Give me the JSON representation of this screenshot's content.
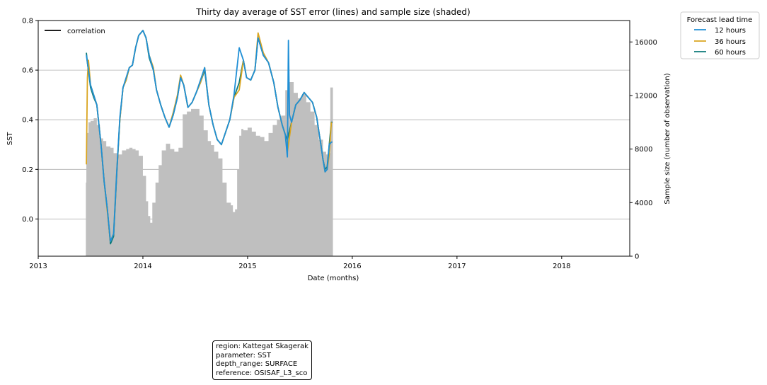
{
  "chart_data": {
    "type": "line",
    "title": "Thirty day average of SST error (lines) and sample size (shaded)",
    "xlabel": "Date (months)",
    "ylabel": "SST",
    "y2label": "Sample size (number of observation)",
    "xlim": [
      2013.0,
      2018.65
    ],
    "ylim": [
      -0.15,
      0.8
    ],
    "y2lim": [
      0,
      17600
    ],
    "xticks": [
      2013,
      2014,
      2015,
      2016,
      2017,
      2018
    ],
    "xtick_labels": [
      "2013",
      "2014",
      "2015",
      "2016",
      "2017",
      "2018"
    ],
    "yticks": [
      0.0,
      0.2,
      0.4,
      0.6,
      0.8
    ],
    "ytick_labels": [
      "0.0",
      "0.2",
      "0.4",
      "0.6",
      "0.8"
    ],
    "y2ticks": [
      0,
      4000,
      8000,
      12000,
      16000
    ],
    "y2tick_labels": [
      "0",
      "4000",
      "8000",
      "12000",
      "16000"
    ],
    "grid": "horizontal",
    "main_legend": {
      "label": "correlation",
      "placement": "upper-left"
    },
    "legend": {
      "title": "Forecast lead time",
      "placement": "outside-top-right",
      "entries": [
        {
          "label": "12 hours",
          "color": "#1f8fd6"
        },
        {
          "label": "36 hours",
          "color": "#daa520"
        },
        {
          "label": "60 hours",
          "color": "#0d7a7a"
        }
      ]
    },
    "series": [
      {
        "name": "60 hours",
        "color": "#0d7a7a",
        "x": [
          2013.46,
          2013.47,
          2013.5,
          2013.53,
          2013.56,
          2013.58,
          2013.6,
          2013.63,
          2013.66,
          2013.69,
          2013.72,
          2013.75,
          2013.78,
          2013.81,
          2013.84,
          2013.87,
          2013.9,
          2013.93,
          2013.96,
          2014.0,
          2014.03,
          2014.06,
          2014.1,
          2014.13,
          2014.17,
          2014.21,
          2014.25,
          2014.29,
          2014.33,
          2014.36,
          2014.39,
          2014.43,
          2014.47,
          2014.51,
          2014.55,
          2014.59,
          2014.63,
          2014.67,
          2014.71,
          2014.75,
          2014.79,
          2014.83,
          2014.87,
          2014.92,
          2014.96,
          2014.99,
          2015.03,
          2015.07,
          2015.1,
          2015.15,
          2015.2,
          2015.25,
          2015.29,
          2015.33,
          2015.36,
          2015.38,
          2015.42,
          2015.46,
          2015.5,
          2015.54,
          2015.58,
          2015.62,
          2015.66,
          2015.7,
          2015.72,
          2015.74,
          2015.76,
          2015.78,
          2015.8,
          2015.81
        ],
        "values": [
          0.67,
          0.63,
          0.53,
          0.49,
          0.46,
          0.38,
          0.3,
          0.15,
          0.04,
          -0.1,
          -0.07,
          0.18,
          0.4,
          0.53,
          0.56,
          0.61,
          0.62,
          0.69,
          0.74,
          0.76,
          0.73,
          0.65,
          0.6,
          0.52,
          0.46,
          0.41,
          0.37,
          0.42,
          0.49,
          0.57,
          0.54,
          0.45,
          0.47,
          0.51,
          0.55,
          0.6,
          0.46,
          0.38,
          0.32,
          0.3,
          0.35,
          0.4,
          0.49,
          0.55,
          0.64,
          0.57,
          0.56,
          0.6,
          0.73,
          0.66,
          0.63,
          0.55,
          0.45,
          0.38,
          0.34,
          0.32,
          0.39,
          0.46,
          0.48,
          0.51,
          0.49,
          0.47,
          0.41,
          0.3,
          0.24,
          0.2,
          0.21,
          0.3,
          0.39,
          0.39
        ]
      },
      {
        "name": "36 hours",
        "color": "#daa520",
        "x": [
          2013.46,
          2013.47,
          2013.48,
          2013.5,
          2013.53,
          2013.56,
          2013.58,
          2013.6,
          2013.63,
          2013.66,
          2013.69,
          2013.72,
          2013.75,
          2013.78,
          2013.81,
          2013.84,
          2013.87,
          2013.9,
          2013.93,
          2013.96,
          2014.0,
          2014.03,
          2014.06,
          2014.1,
          2014.13,
          2014.17,
          2014.21,
          2014.25,
          2014.29,
          2014.33,
          2014.36,
          2014.39,
          2014.43,
          2014.47,
          2014.51,
          2014.55,
          2014.59,
          2014.63,
          2014.67,
          2014.71,
          2014.75,
          2014.79,
          2014.83,
          2014.87,
          2014.92,
          2014.96,
          2014.99,
          2015.03,
          2015.07,
          2015.1,
          2015.15,
          2015.2,
          2015.25,
          2015.29,
          2015.33,
          2015.36,
          2015.38,
          2015.42,
          2015.46,
          2015.5,
          2015.54,
          2015.58,
          2015.62,
          2015.66,
          2015.7,
          2015.72,
          2015.74,
          2015.76,
          2015.78,
          2015.8
        ],
        "values": [
          0.22,
          0.57,
          0.64,
          0.54,
          0.5,
          0.46,
          0.38,
          0.3,
          0.15,
          0.03,
          -0.09,
          -0.06,
          0.19,
          0.4,
          0.53,
          0.56,
          0.61,
          0.62,
          0.69,
          0.74,
          0.76,
          0.73,
          0.66,
          0.61,
          0.52,
          0.46,
          0.41,
          0.37,
          0.43,
          0.5,
          0.58,
          0.54,
          0.45,
          0.47,
          0.51,
          0.55,
          0.61,
          0.46,
          0.38,
          0.32,
          0.3,
          0.35,
          0.4,
          0.49,
          0.52,
          0.64,
          0.57,
          0.56,
          0.6,
          0.75,
          0.67,
          0.63,
          0.55,
          0.45,
          0.38,
          0.34,
          0.27,
          0.39,
          0.46,
          0.48,
          0.51,
          0.49,
          0.47,
          0.41,
          0.3,
          0.24,
          0.19,
          0.2,
          0.26,
          0.39
        ]
      },
      {
        "name": "12 hours",
        "color": "#1f8fd6",
        "x": [
          2013.46,
          2013.47,
          2013.5,
          2013.53,
          2013.56,
          2013.58,
          2013.6,
          2013.63,
          2013.66,
          2013.69,
          2013.72,
          2013.75,
          2013.78,
          2013.81,
          2013.84,
          2013.87,
          2013.9,
          2013.93,
          2013.96,
          2014.0,
          2014.03,
          2014.06,
          2014.1,
          2014.13,
          2014.17,
          2014.21,
          2014.25,
          2014.29,
          2014.33,
          2014.36,
          2014.39,
          2014.43,
          2014.47,
          2014.51,
          2014.55,
          2014.59,
          2014.63,
          2014.67,
          2014.71,
          2014.75,
          2014.79,
          2014.83,
          2014.87,
          2014.92,
          2014.96,
          2014.99,
          2015.03,
          2015.07,
          2015.1,
          2015.15,
          2015.2,
          2015.25,
          2015.29,
          2015.33,
          2015.36,
          2015.38,
          2015.39,
          2015.4,
          2015.42,
          2015.46,
          2015.5,
          2015.54,
          2015.58,
          2015.62,
          2015.66,
          2015.7,
          2015.72,
          2015.74,
          2015.76,
          2015.78,
          2015.8,
          2015.81
        ],
        "values": [
          0.66,
          0.63,
          0.54,
          0.5,
          0.46,
          0.38,
          0.3,
          0.15,
          0.04,
          -0.09,
          -0.06,
          0.19,
          0.41,
          0.53,
          0.57,
          0.61,
          0.62,
          0.69,
          0.74,
          0.76,
          0.73,
          0.66,
          0.6,
          0.52,
          0.46,
          0.41,
          0.37,
          0.42,
          0.49,
          0.57,
          0.54,
          0.45,
          0.47,
          0.51,
          0.56,
          0.61,
          0.46,
          0.38,
          0.32,
          0.3,
          0.35,
          0.4,
          0.5,
          0.69,
          0.64,
          0.57,
          0.56,
          0.6,
          0.73,
          0.66,
          0.63,
          0.55,
          0.45,
          0.38,
          0.34,
          0.25,
          0.72,
          0.42,
          0.39,
          0.46,
          0.48,
          0.51,
          0.49,
          0.47,
          0.41,
          0.3,
          0.24,
          0.19,
          0.2,
          0.3,
          0.31,
          0.31
        ]
      }
    ],
    "sample_size": {
      "x": [
        2013.455,
        2013.46,
        2013.48,
        2013.5,
        2013.53,
        2013.56,
        2013.59,
        2013.62,
        2013.65,
        2013.69,
        2013.72,
        2013.76,
        2013.8,
        2013.84,
        2013.87,
        2013.9,
        2013.93,
        2013.96,
        2014.0,
        2014.03,
        2014.05,
        2014.07,
        2014.09,
        2014.12,
        2014.15,
        2014.18,
        2014.22,
        2014.26,
        2014.3,
        2014.34,
        2014.38,
        2014.42,
        2014.46,
        2014.5,
        2014.54,
        2014.58,
        2014.62,
        2014.65,
        2014.68,
        2014.72,
        2014.76,
        2014.8,
        2014.84,
        2014.86,
        2014.88,
        2014.9,
        2014.92,
        2014.94,
        2014.96,
        2015.0,
        2015.04,
        2015.08,
        2015.12,
        2015.16,
        2015.2,
        2015.24,
        2015.28,
        2015.32,
        2015.36,
        2015.4,
        2015.44,
        2015.48,
        2015.52,
        2015.56,
        2015.6,
        2015.64,
        2015.68,
        2015.72,
        2015.75,
        2015.77,
        2015.79,
        2015.81
      ],
      "values": [
        5500,
        9200,
        10000,
        10100,
        10300,
        9800,
        8800,
        8600,
        8200,
        8100,
        7700,
        7600,
        7900,
        8000,
        8100,
        8000,
        7900,
        7500,
        6000,
        4100,
        3000,
        2500,
        4000,
        5500,
        6800,
        7900,
        8400,
        8000,
        7800,
        8100,
        10600,
        10800,
        11000,
        11000,
        10500,
        9400,
        8600,
        8300,
        7800,
        7300,
        5500,
        4000,
        3800,
        3300,
        3500,
        6500,
        9000,
        9500,
        9400,
        9600,
        9300,
        9000,
        8900,
        8600,
        9200,
        9800,
        10200,
        10500,
        12400,
        13000,
        12200,
        11800,
        12100,
        11500,
        10800,
        9800,
        8700,
        7800,
        7600,
        7700,
        12600,
        12600
      ]
    }
  },
  "info_box": {
    "line1": "region: Kattegat Skagerak",
    "line2": "parameter: SST",
    "line3": "depth_range: SURFACE",
    "line4": "reference: OSISAF_L3_sco"
  },
  "colors": {
    "shade": "#bfbfbf",
    "grid": "#b0b0b0",
    "axis": "#000000",
    "corr": "#000000"
  }
}
